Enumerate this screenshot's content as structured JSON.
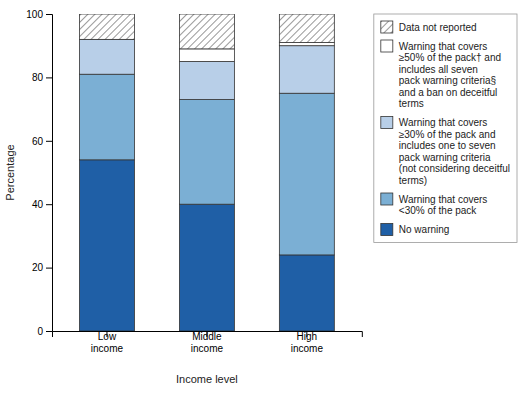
{
  "chart_data": {
    "type": "bar",
    "stacked": true,
    "categories": [
      "Low\nincome",
      "Middle\nincome",
      "High\nincome"
    ],
    "series": [
      {
        "name": "No warning",
        "color": "#1f5fa6",
        "values": [
          54,
          40,
          24
        ]
      },
      {
        "name": "Warning that covers\n<30% of the pack",
        "color": "#7bafd4",
        "values": [
          27,
          33,
          51
        ]
      },
      {
        "name": "Warning that covers\n≥30% of the pack and\nincludes one to seven\npack warning criteria\n(not considering deceitful\nterms)",
        "color": "#b8cfe8",
        "values": [
          11,
          12,
          15
        ]
      },
      {
        "name": "Warning that covers\n≥50% of the pack† and\nincludes all seven\npack warning criteria§\nand a ban on deceitful\nterms",
        "color": "#ffffff",
        "values": [
          0,
          4,
          1
        ]
      },
      {
        "name": "Data not reported",
        "values": [
          8,
          11,
          9
        ]
      }
    ],
    "xlabel": "Income level",
    "ylabel": "Percentage",
    "ylim": [
      0,
      100
    ],
    "yticks": [
      0,
      20,
      40,
      60,
      80,
      100
    ],
    "grid": false,
    "legend": "right"
  }
}
